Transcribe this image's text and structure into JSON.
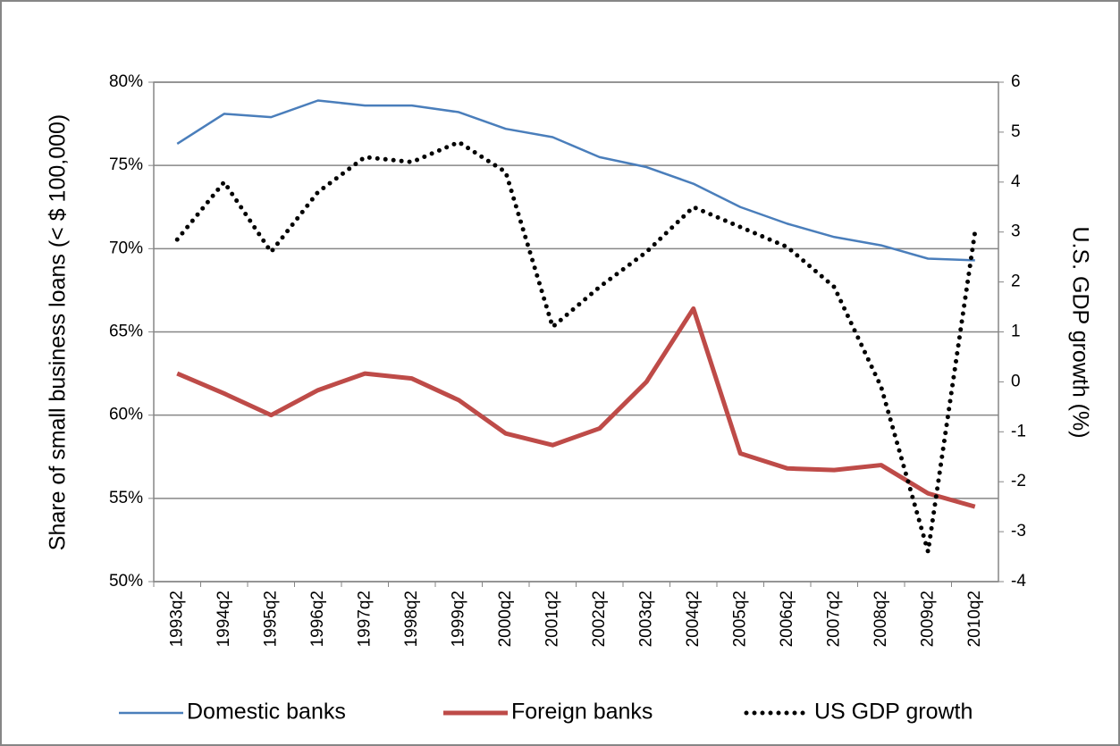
{
  "chart_data": {
    "type": "line",
    "ylabel": "Share of small business loans (< $ 100,000)",
    "y2label": "U.S. GDP growth (%)",
    "categories": [
      "1993q2",
      "1994q2",
      "1995q2",
      "1996q2",
      "1997q2",
      "1998q2",
      "1999q2",
      "2000q2",
      "2001q2",
      "2002q2",
      "2003q2",
      "2004q2",
      "2005q2",
      "2006q2",
      "2007q2",
      "2008q2",
      "2009q2",
      "2010q2"
    ],
    "series": [
      {
        "name": "Domestic banks",
        "color": "#4a7ebb",
        "values": [
          76.3,
          78.1,
          77.9,
          78.9,
          78.6,
          78.6,
          78.2,
          77.2,
          76.7,
          75.5,
          74.9,
          73.9,
          72.5,
          71.5,
          70.7,
          70.2,
          69.4,
          69.3
        ]
      },
      {
        "name": "Foreign banks",
        "color": "#be4b48",
        "values": [
          62.5,
          61.3,
          60.0,
          61.5,
          62.5,
          62.2,
          60.9,
          58.9,
          58.2,
          59.2,
          62.0,
          66.4,
          57.7,
          56.8,
          56.7,
          57.0,
          55.3,
          54.5
        ]
      },
      {
        "name": "US GDP growth",
        "color": "#000000",
        "axis": "y2",
        "dotted": true,
        "values": [
          2.85,
          4.0,
          2.6,
          3.8,
          4.5,
          4.4,
          4.8,
          4.2,
          1.1,
          1.9,
          2.6,
          3.5,
          3.1,
          2.7,
          1.9,
          -0.1,
          -3.4,
          3.0
        ]
      }
    ],
    "ylim": [
      50,
      80
    ],
    "yticks": [
      {
        "value": 50,
        "label": "50%"
      },
      {
        "value": 55,
        "label": "55%"
      },
      {
        "value": 60,
        "label": "60%"
      },
      {
        "value": 65,
        "label": "65%"
      },
      {
        "value": 70,
        "label": "70%"
      },
      {
        "value": 75,
        "label": "75%"
      },
      {
        "value": 80,
        "label": "80%"
      }
    ],
    "y2lim": [
      -4,
      6
    ],
    "y2ticks": [
      -4,
      -3,
      -2,
      -1,
      0,
      1,
      2,
      3,
      4,
      5,
      6
    ],
    "grid": true,
    "legend": "bottom"
  }
}
